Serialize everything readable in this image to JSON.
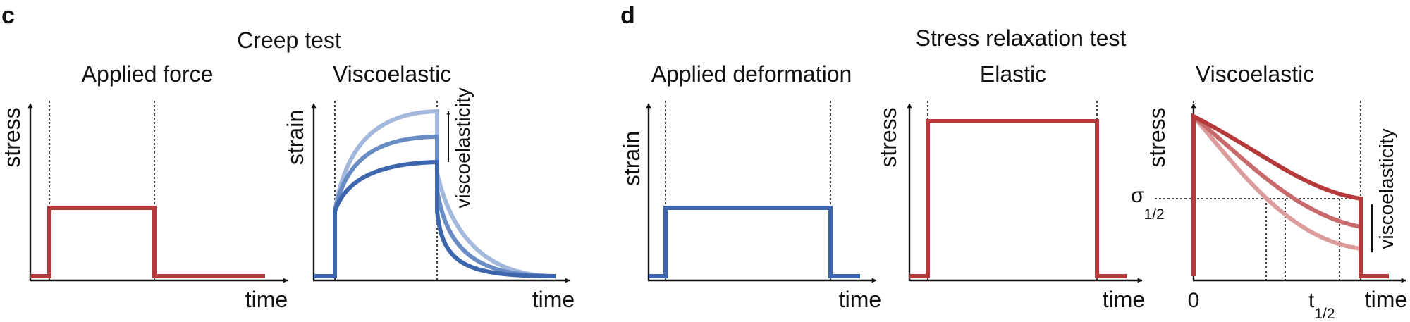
{
  "panels": {
    "c": {
      "letter": "c",
      "title": "Creep test",
      "left": {
        "title": "Applied force",
        "ylabel": "stress",
        "xlabel": "time"
      },
      "right": {
        "title": "Viscoelastic",
        "ylabel": "strain",
        "xlabel": "time",
        "arrow_label": "viscoelasticity"
      }
    },
    "d": {
      "letter": "d",
      "title": "Stress relaxation test",
      "left": {
        "title": "Applied deformation",
        "ylabel": "strain",
        "xlabel": "time"
      },
      "middle": {
        "title": "Elastic",
        "ylabel": "stress",
        "xlabel": "time"
      },
      "right": {
        "title": "Viscoelastic",
        "ylabel": "stress",
        "xlabel": "time",
        "arrow_label": "viscoelasticity",
        "sigma_main": "σ",
        "sigma_sub": "1/2",
        "t_main": "t",
        "t_sub": "1/2",
        "zero": "0"
      }
    }
  },
  "colors": {
    "red": "#b5393a",
    "red_mid": "#c86a6b",
    "red_light": "#dc9c9c",
    "blue": "#3d66ad",
    "blue_mid": "#6a8cc4",
    "blue_light": "#a2b8dc",
    "black": "#111111"
  }
}
